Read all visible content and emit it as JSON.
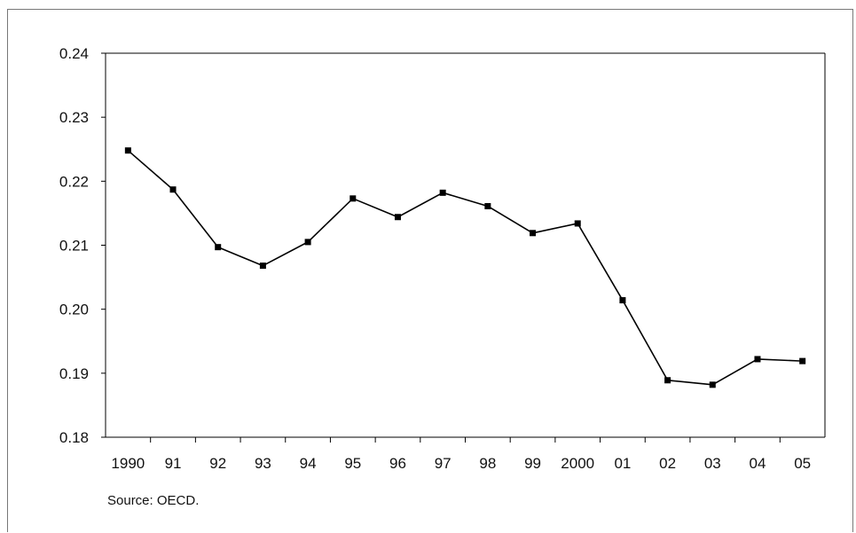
{
  "chart_data": {
    "type": "line",
    "title": "",
    "xlabel": "",
    "ylabel": "",
    "categories": [
      "1990",
      "91",
      "92",
      "93",
      "94",
      "95",
      "96",
      "97",
      "98",
      "99",
      "2000",
      "01",
      "02",
      "03",
      "04",
      "05"
    ],
    "series": [
      {
        "values": [
          0.2248,
          0.2187,
          0.2097,
          0.2068,
          0.2105,
          0.2173,
          0.2144,
          0.2182,
          0.2161,
          0.2119,
          0.2134,
          0.2014,
          0.1889,
          0.1882,
          0.1922,
          0.1919
        ],
        "color": "#000000",
        "marker": "square"
      }
    ],
    "ylim": [
      0.18,
      0.24
    ],
    "yticks": [
      "0.24",
      "0.23",
      "0.22",
      "0.21",
      "0.20",
      "0.19",
      "0.18"
    ],
    "grid": false,
    "legend": "none"
  },
  "source_note": "Source: OECD."
}
